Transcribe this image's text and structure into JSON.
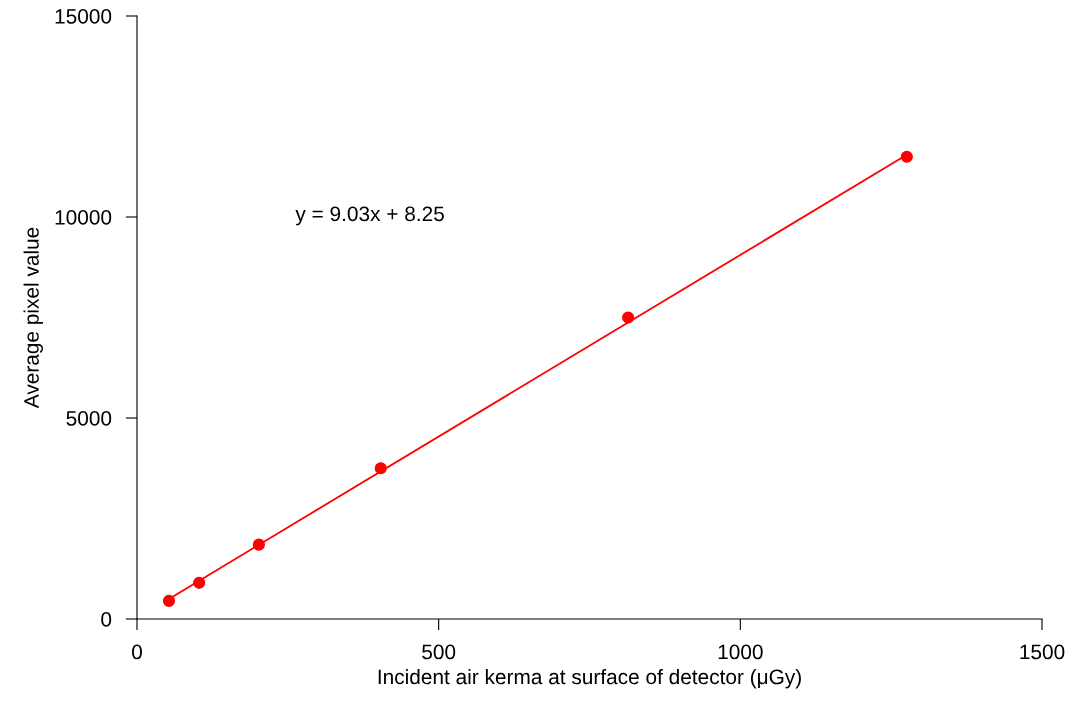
{
  "chart_data": {
    "type": "scatter",
    "xlabel": "Incident air kerma at surface of detector (μGy)",
    "ylabel": "Average pixel value",
    "x": [
      53,
      103,
      202,
      404,
      814,
      1276
    ],
    "series": [
      {
        "color": "#ff0000",
        "marker": "circle",
        "values": [
          450,
          900,
          1850,
          3750,
          7500,
          11500
        ]
      },
      {
        "type": "line",
        "color": "#ff0000",
        "marker": "none",
        "x": [
          53,
          1276
        ],
        "values": [
          500,
          11550
        ]
      }
    ],
    "annotations": [
      "y = 9.03x + 8.25"
    ],
    "xlim": [
      0,
      1500
    ],
    "ylim": [
      0,
      15000
    ],
    "xticks": [
      0,
      500,
      1000,
      1500
    ],
    "yticks": [
      0,
      5000,
      10000,
      15000
    ],
    "grid": false,
    "legend": false
  }
}
